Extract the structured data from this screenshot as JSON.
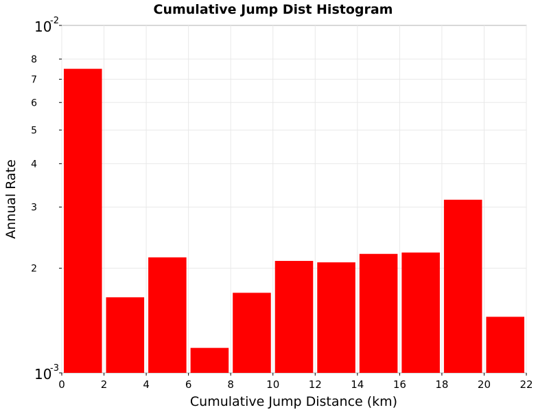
{
  "chart_data": {
    "type": "bar",
    "title": "Cumulative Jump Dist Histogram",
    "xlabel": "Cumulative Jump Distance (km)",
    "ylabel": "Annual Rate",
    "y_scale": "log",
    "xlim": [
      0,
      22
    ],
    "ylim": [
      0.001,
      0.01
    ],
    "grid": true,
    "bar_color": "#ff0000",
    "x_ticks": [
      "0",
      "2",
      "4",
      "6",
      "8",
      "10",
      "12",
      "14",
      "16",
      "18",
      "20",
      "22"
    ],
    "y_minor_ticks": [
      "2",
      "3",
      "4",
      "5",
      "6",
      "7",
      "8"
    ],
    "y_major_ticks": [
      {
        "base": "10",
        "exp": "-3"
      },
      {
        "base": "10",
        "exp": "-2"
      }
    ],
    "bins": [
      {
        "x_start": 0,
        "x_end": 2,
        "value": 0.0075
      },
      {
        "x_start": 2,
        "x_end": 4,
        "value": 0.00165
      },
      {
        "x_start": 4,
        "x_end": 6,
        "value": 0.00215
      },
      {
        "x_start": 6,
        "x_end": 8,
        "value": 0.00118
      },
      {
        "x_start": 8,
        "x_end": 10,
        "value": 0.0017
      },
      {
        "x_start": 10,
        "x_end": 12,
        "value": 0.0021
      },
      {
        "x_start": 12,
        "x_end": 14,
        "value": 0.00208
      },
      {
        "x_start": 14,
        "x_end": 16,
        "value": 0.0022
      },
      {
        "x_start": 16,
        "x_end": 18,
        "value": 0.00222
      },
      {
        "x_start": 18,
        "x_end": 20,
        "value": 0.00315
      },
      {
        "x_start": 20,
        "x_end": 22,
        "value": 0.00145
      }
    ]
  }
}
